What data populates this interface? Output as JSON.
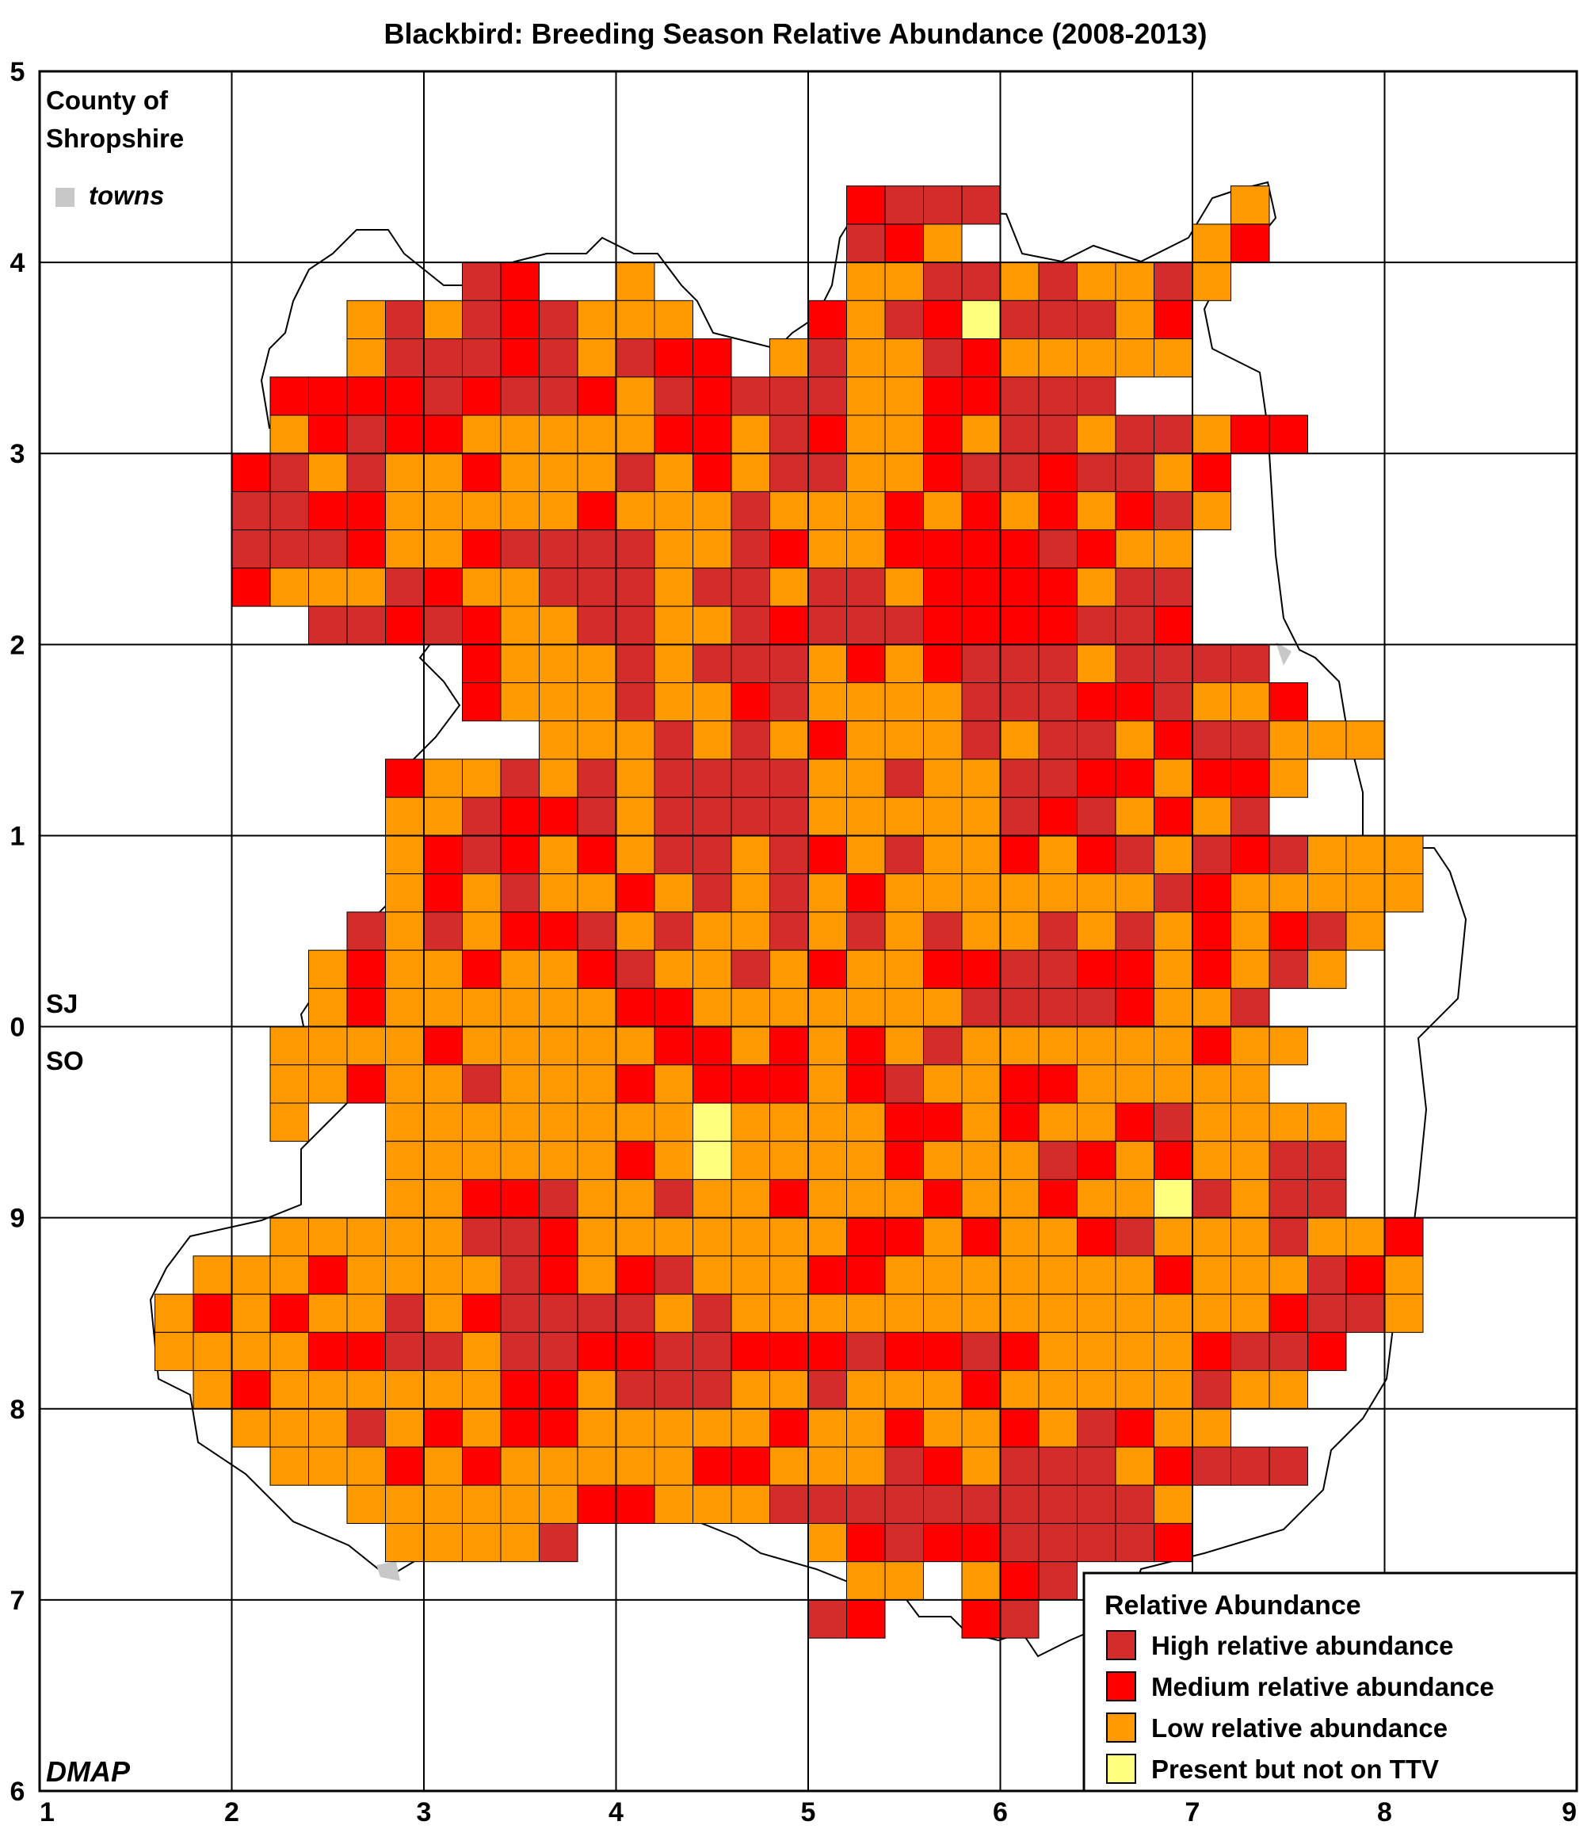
{
  "title": "Blackbird: Breeding Season Relative Abundance (2008-2013)",
  "county_label": [
    "County of",
    "Shropshire"
  ],
  "towns_label": "towns",
  "credit": "DMAP",
  "grid_refs": {
    "north": "SJ",
    "south": "SO"
  },
  "axis_x_ticks": [
    "1",
    "2",
    "3",
    "4",
    "5",
    "6",
    "7",
    "8",
    "9"
  ],
  "axis_y_ticks": [
    "6",
    "7",
    "8",
    "9",
    "0",
    "1",
    "2",
    "3",
    "4",
    "5"
  ],
  "legend": {
    "title": "Relative Abundance",
    "entries": [
      {
        "code": "H",
        "label": "High relative abundance",
        "color": "#d42b2b"
      },
      {
        "code": "M",
        "label": "Medium relative abundance",
        "color": "#ff0000"
      },
      {
        "code": "L",
        "label": "Low relative abundance",
        "color": "#ff9900"
      },
      {
        "code": "P",
        "label": "Present but not on TTV",
        "color": "#ffff80"
      }
    ]
  },
  "colors": {
    "towns": "#c8c8c8",
    "grid": "#000000",
    "boundary": "#000000"
  },
  "tetrad_rows": [
    {
      "y": 4.4,
      "x0": 5.2,
      "cells": "MHHH"
    },
    {
      "y": 4.4,
      "x0": 7.2,
      "cells": "L"
    },
    {
      "y": 4.2,
      "x0": 5.2,
      "cells": "HML"
    },
    {
      "y": 4.2,
      "x0": 7.0,
      "cells": "LM"
    },
    {
      "y": 4.0,
      "x0": 3.2,
      "cells": "HM"
    },
    {
      "y": 4.0,
      "x0": 4.0,
      "cells": "L"
    },
    {
      "y": 4.0,
      "x0": 5.2,
      "cells": "LLHHLHLLHL"
    },
    {
      "y": 3.8,
      "x0": 2.6,
      "cells": "LHLHMHLLL"
    },
    {
      "y": 3.8,
      "x0": 5.0,
      "cells": "MLHMPHHHLM"
    },
    {
      "y": 3.6,
      "x0": 2.6,
      "cells": "LHHHMHLHMM"
    },
    {
      "y": 3.6,
      "x0": 4.8,
      "cells": "LHLLHMLLLLL"
    },
    {
      "y": 3.4,
      "x0": 2.2,
      "cells": "MMMMHMHHMLHMHHHLLMMHHH"
    },
    {
      "y": 3.2,
      "x0": 2.2,
      "cells": "LMHMMLLLLLMMLHMLLMLHHLHHLMM"
    },
    {
      "y": 3.0,
      "x0": 2.0,
      "cells": "MHLHLLMLLLHLMLHHLLMHHMHHLM"
    },
    {
      "y": 2.8,
      "x0": 2.0,
      "cells": "HHMMLLLLLMLLLHLLLMLMLMLMHL"
    },
    {
      "y": 2.6,
      "x0": 2.0,
      "cells": "HHHMLLMHHHHLLHMLLMMMMHMLL"
    },
    {
      "y": 2.4,
      "x0": 2.0,
      "cells": "MLLLHMLLHHHLHHLHHLMMMMLHH"
    },
    {
      "y": 2.2,
      "x0": 2.4,
      "cells": "HHMHMLLHHLLHMHHHMMMMHHM"
    },
    {
      "y": 2.0,
      "x0": 3.2,
      "cells": "MLLLHLHHHLMLMHHHLHHHH"
    },
    {
      "y": 1.8,
      "x0": 3.2,
      "cells": "MLLLHLLMHLLLLHHHMMHLLM"
    },
    {
      "y": 1.6,
      "x0": 3.6,
      "cells": "LLLHLHLMLLLHLHHLMHHLLL"
    },
    {
      "y": 1.4,
      "x0": 2.8,
      "cells": "MLLHLHLHHHHLLHLLHHMMLMML"
    },
    {
      "y": 1.2,
      "x0": 2.8,
      "cells": "LLHMMHLHHHHLLLLLHMHLMLH"
    },
    {
      "y": 1.0,
      "x0": 2.8,
      "cells": "LMHMLMLHHLHMLHLLMLMHLHMHLLL"
    },
    {
      "y": 0.8,
      "x0": 2.8,
      "cells": "LMLHLLMLHLHLMLLLLLLLHMLLLLL"
    },
    {
      "y": 0.6,
      "x0": 2.6,
      "cells": "HLHLMMHLHLLHLHLHLLHLHLMLMHL"
    },
    {
      "y": 0.4,
      "x0": 2.4,
      "cells": "LMLLMLLMHLLHLMLLMMHHMMLMLHL"
    },
    {
      "y": 0.2,
      "x0": 2.4,
      "cells": "LMLLLLLLMMLLLLLLLHHHHMLLH"
    },
    {
      "y": 0.0,
      "x0": 2.2,
      "cells": "LLLLMLLLLLMMLMLMLHLLLLLLMLL"
    },
    {
      "y": -0.2,
      "x0": 2.2,
      "cells": "LLMLLHLLLMLMMMLMHLLMMLLLLL"
    },
    {
      "y": -0.4,
      "x0": 2.2,
      "cells": "L",
      "x_gap_note": "single"
    },
    {
      "y": -0.4,
      "x0": 2.8,
      "cells": "LLLLLLLLPLLLLMMLMLLMHLLLL"
    },
    {
      "y": -0.6,
      "x0": 2.8,
      "cells": "LLLLLLMLPLLLLMLLLHMLMLLHH"
    },
    {
      "y": -0.8,
      "x0": 2.8,
      "cells": "LLMMHLLHLLMLLLMLLMLLPHLHH"
    },
    {
      "y": -1.0,
      "x0": 2.2,
      "cells": "LLLLLHHMLLLLLLLMMLMLLMHLLLHLLM"
    },
    {
      "y": -1.2,
      "x0": 1.8,
      "cells": "LLLMLLLLHMLMHLLLMMLLLLLLLMLLLHML"
    },
    {
      "y": -1.4,
      "x0": 1.6,
      "cells": "LMLMLLHLMHHHHLHLLLLLLLLLLLLLLMHHL"
    },
    {
      "y": -1.6,
      "x0": 1.6,
      "cells": "LLLLMMHHLHHMMHHMMMHMMHMLLLLMHHM"
    },
    {
      "y": -1.8,
      "x0": 1.8,
      "cells": "LMLLLLLLMMLHHHLLHLLLMLLLLLHLL"
    },
    {
      "y": -2.0,
      "x0": 2.0,
      "cells": "LLLHLMLMMLLLLLMLLMLLMLHMLL"
    },
    {
      "y": -2.2,
      "x0": 2.2,
      "cells": "LLLMLMLLLLLMMLLLHMLHHHLMHHH"
    },
    {
      "y": -2.4,
      "x0": 2.6,
      "cells": "LLLLLLMMLLLHHHHHHHHHHL"
    },
    {
      "y": -2.6,
      "x0": 2.8,
      "cells": "LLLLH",
      "x_split": true
    },
    {
      "y": -2.6,
      "x0": 5.0,
      "cells": "LMHMMHHHHM"
    },
    {
      "y": -2.8,
      "x0": 5.2,
      "cells": "LL",
      "extra": true
    },
    {
      "y": -2.8,
      "x0": 5.8,
      "cells": "LMH"
    },
    {
      "y": -3.0,
      "x0": 5.0,
      "cells": "HM"
    },
    {
      "y": -3.0,
      "x0": 5.8,
      "cells": "MH"
    }
  ],
  "chart_data": {
    "type": "heatmap",
    "title": "Blackbird: Breeding Season Relative Abundance (2008-2013)",
    "xlabel": "",
    "ylabel": "",
    "categories": [
      "High relative abundance",
      "Medium relative abundance",
      "Low relative abundance",
      "Present but not on TTV"
    ],
    "cell_size_km": 2,
    "xlim": [
      1,
      9
    ],
    "ylim_labels": [
      "6",
      "7",
      "8",
      "9",
      "0",
      "1",
      "2",
      "3",
      "4",
      "5"
    ],
    "grid": true,
    "legend_position": "bottom-right"
  }
}
